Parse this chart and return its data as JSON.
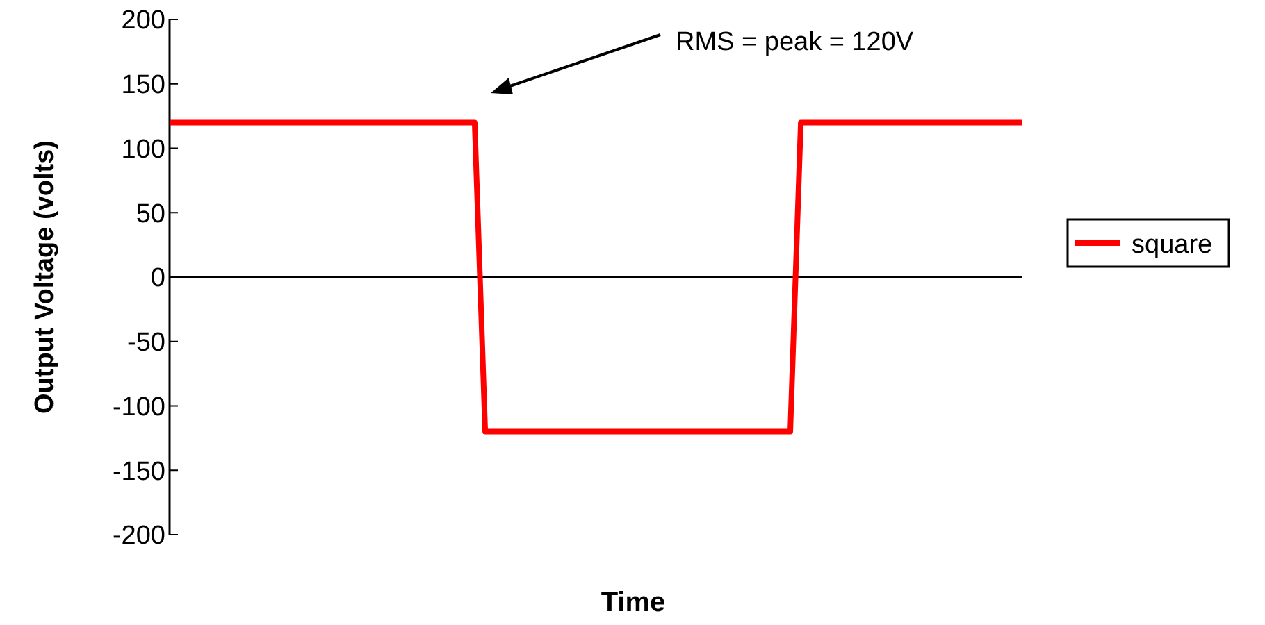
{
  "chart_data": {
    "type": "line",
    "xlabel": "Time",
    "ylabel": "Output Voltage (volts)",
    "categories": [
      null,
      null,
      null,
      null,
      null,
      null,
      null,
      null,
      null,
      null,
      null,
      null,
      null,
      null,
      null,
      null,
      null,
      null,
      null,
      null,
      null,
      null,
      null,
      null,
      null,
      null,
      null,
      null,
      null,
      null,
      null,
      null,
      null,
      null,
      null,
      null,
      null,
      null,
      null,
      null,
      null,
      null,
      null,
      null,
      null,
      null,
      null,
      null,
      null,
      null,
      null,
      null,
      null,
      null,
      null,
      null,
      null,
      null,
      null,
      null,
      null,
      null,
      null,
      null,
      null,
      null,
      null,
      null,
      null,
      null,
      null,
      null,
      null,
      null,
      null,
      null,
      null,
      null,
      null,
      null,
      null,
      null
    ],
    "tick_labels": "y",
    "series": [
      {
        "name": "square",
        "color": "#ff0000",
        "values": [
          120,
          120,
          120,
          120,
          120,
          120,
          120,
          120,
          120,
          120,
          120,
          120,
          120,
          120,
          120,
          120,
          120,
          120,
          120,
          120,
          120,
          120,
          120,
          120,
          120,
          120,
          120,
          120,
          120,
          120,
          -120,
          -120,
          -120,
          -120,
          -120,
          -120,
          -120,
          -120,
          -120,
          -120,
          -120,
          -120,
          -120,
          -120,
          -120,
          -120,
          -120,
          -120,
          -120,
          -120,
          -120,
          -120,
          -120,
          -120,
          -120,
          -120,
          -120,
          -120,
          -120,
          -120,
          120,
          120,
          120,
          120,
          120,
          120,
          120,
          120,
          120,
          120,
          120,
          120,
          120,
          120,
          120,
          120,
          120,
          120,
          120,
          120,
          120,
          120
        ]
      }
    ],
    "ylim": [
      -200,
      200
    ],
    "yticks": [
      -200,
      -150,
      -100,
      -50,
      0,
      50,
      100,
      150,
      200
    ],
    "annotations": [
      "RMS = peak = 120V"
    ],
    "legend": "right",
    "marker": "none",
    "line_style": "solid"
  }
}
